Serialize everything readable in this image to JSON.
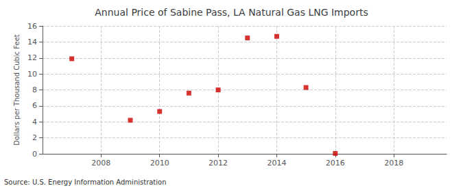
{
  "chart_data": {
    "type": "scatter",
    "title": "Annual Price of Sabine Pass, LA Natural Gas LNG Imports",
    "y_label": "Dollars per Thousand Cubic Feet",
    "annotations": [
      "Source: U.S. Energy Information Administration"
    ],
    "x": [
      2007,
      2009,
      2010,
      2011,
      2012,
      2013,
      2014,
      2015,
      2016
    ],
    "values": [
      11.9,
      4.2,
      5.3,
      7.6,
      8.0,
      14.5,
      14.7,
      8.3,
      0.05
    ],
    "color": "#cc0000",
    "marker": "square",
    "xlim": [
      2006.0,
      2019.8
    ],
    "xticks": [
      2008,
      2010,
      2012,
      2014,
      2016,
      2018
    ],
    "ylim": [
      0,
      16
    ],
    "yticks": [
      0,
      2,
      4,
      6,
      8,
      10,
      12,
      14,
      16
    ],
    "grid": true
  }
}
